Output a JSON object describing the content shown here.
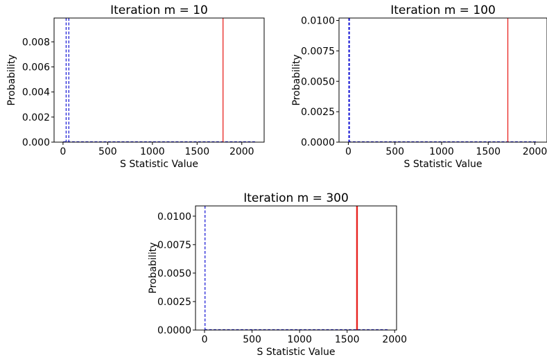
{
  "chart_data": [
    {
      "type": "line",
      "title": "Iteration m = 10",
      "xlabel": "S Statistic Value",
      "ylabel": "Probability",
      "xlim": [
        -100,
        2250
      ],
      "ylim": [
        0,
        0.0099
      ],
      "xticks": [
        0,
        500,
        1000,
        1500,
        2000
      ],
      "xtick_labels": [
        "0",
        "500",
        "1000",
        "1500",
        "2000"
      ],
      "yticks": [
        0,
        0.002,
        0.004,
        0.006,
        0.008
      ],
      "ytick_labels": [
        "0.000",
        "0.002",
        "0.004",
        "0.006",
        "0.008"
      ],
      "grid": false,
      "vlines": [
        {
          "x": 35,
          "style": "dashed",
          "color": "#1f1fd6"
        },
        {
          "x": 65,
          "style": "dashed",
          "color": "#1f1fd6"
        },
        {
          "x": 1790,
          "style": "solid",
          "color": "#e8231f"
        }
      ],
      "baseline": {
        "x0": 0,
        "x1": 2150,
        "style": "dashed",
        "color": "#1f1fd6"
      }
    },
    {
      "type": "line",
      "title": "Iteration m = 100",
      "xlabel": "S Statistic Value",
      "ylabel": "Probability",
      "xlim": [
        -100,
        2130
      ],
      "ylim": [
        0,
        0.0102
      ],
      "xticks": [
        0,
        500,
        1000,
        1500,
        2000
      ],
      "xtick_labels": [
        "0",
        "500",
        "1000",
        "1500",
        "2000"
      ],
      "yticks": [
        0,
        0.0025,
        0.005,
        0.0075,
        0.01
      ],
      "ytick_labels": [
        "0.0000",
        "0.0025",
        "0.0050",
        "0.0075",
        "0.0100"
      ],
      "grid": false,
      "vlines": [
        {
          "x": 5,
          "style": "dashed",
          "color": "#1f1fd6"
        },
        {
          "x": 12,
          "style": "dashed",
          "color": "#1f1fd6"
        },
        {
          "x": 1710,
          "style": "solid",
          "color": "#e8231f"
        }
      ],
      "baseline": {
        "x0": 0,
        "x1": 2030,
        "style": "dashed",
        "color": "#1f1fd6"
      }
    },
    {
      "type": "line",
      "title": "Iteration m = 300",
      "xlabel": "S Statistic Value",
      "ylabel": "Probability",
      "xlim": [
        -95,
        2020
      ],
      "ylim": [
        0,
        0.0109
      ],
      "xticks": [
        0,
        500,
        1000,
        1500,
        2000
      ],
      "xtick_labels": [
        "0",
        "500",
        "1000",
        "1500",
        "2000"
      ],
      "yticks": [
        0,
        0.0025,
        0.005,
        0.0075,
        0.01
      ],
      "ytick_labels": [
        "0.0000",
        "0.0025",
        "0.0050",
        "0.0075",
        "0.0100"
      ],
      "grid": false,
      "vlines": [
        {
          "x": 5,
          "style": "dashed",
          "color": "#1f1fd6"
        },
        {
          "x": 1600,
          "style": "solid",
          "color": "#e8231f"
        },
        {
          "x": 1604,
          "style": "solid",
          "color": "#e8231f"
        },
        {
          "x": 1608,
          "style": "solid",
          "color": "#e8231f"
        }
      ],
      "baseline": {
        "x0": 0,
        "x1": 1925,
        "style": "dashed",
        "color": "#1f1fd6"
      }
    }
  ]
}
